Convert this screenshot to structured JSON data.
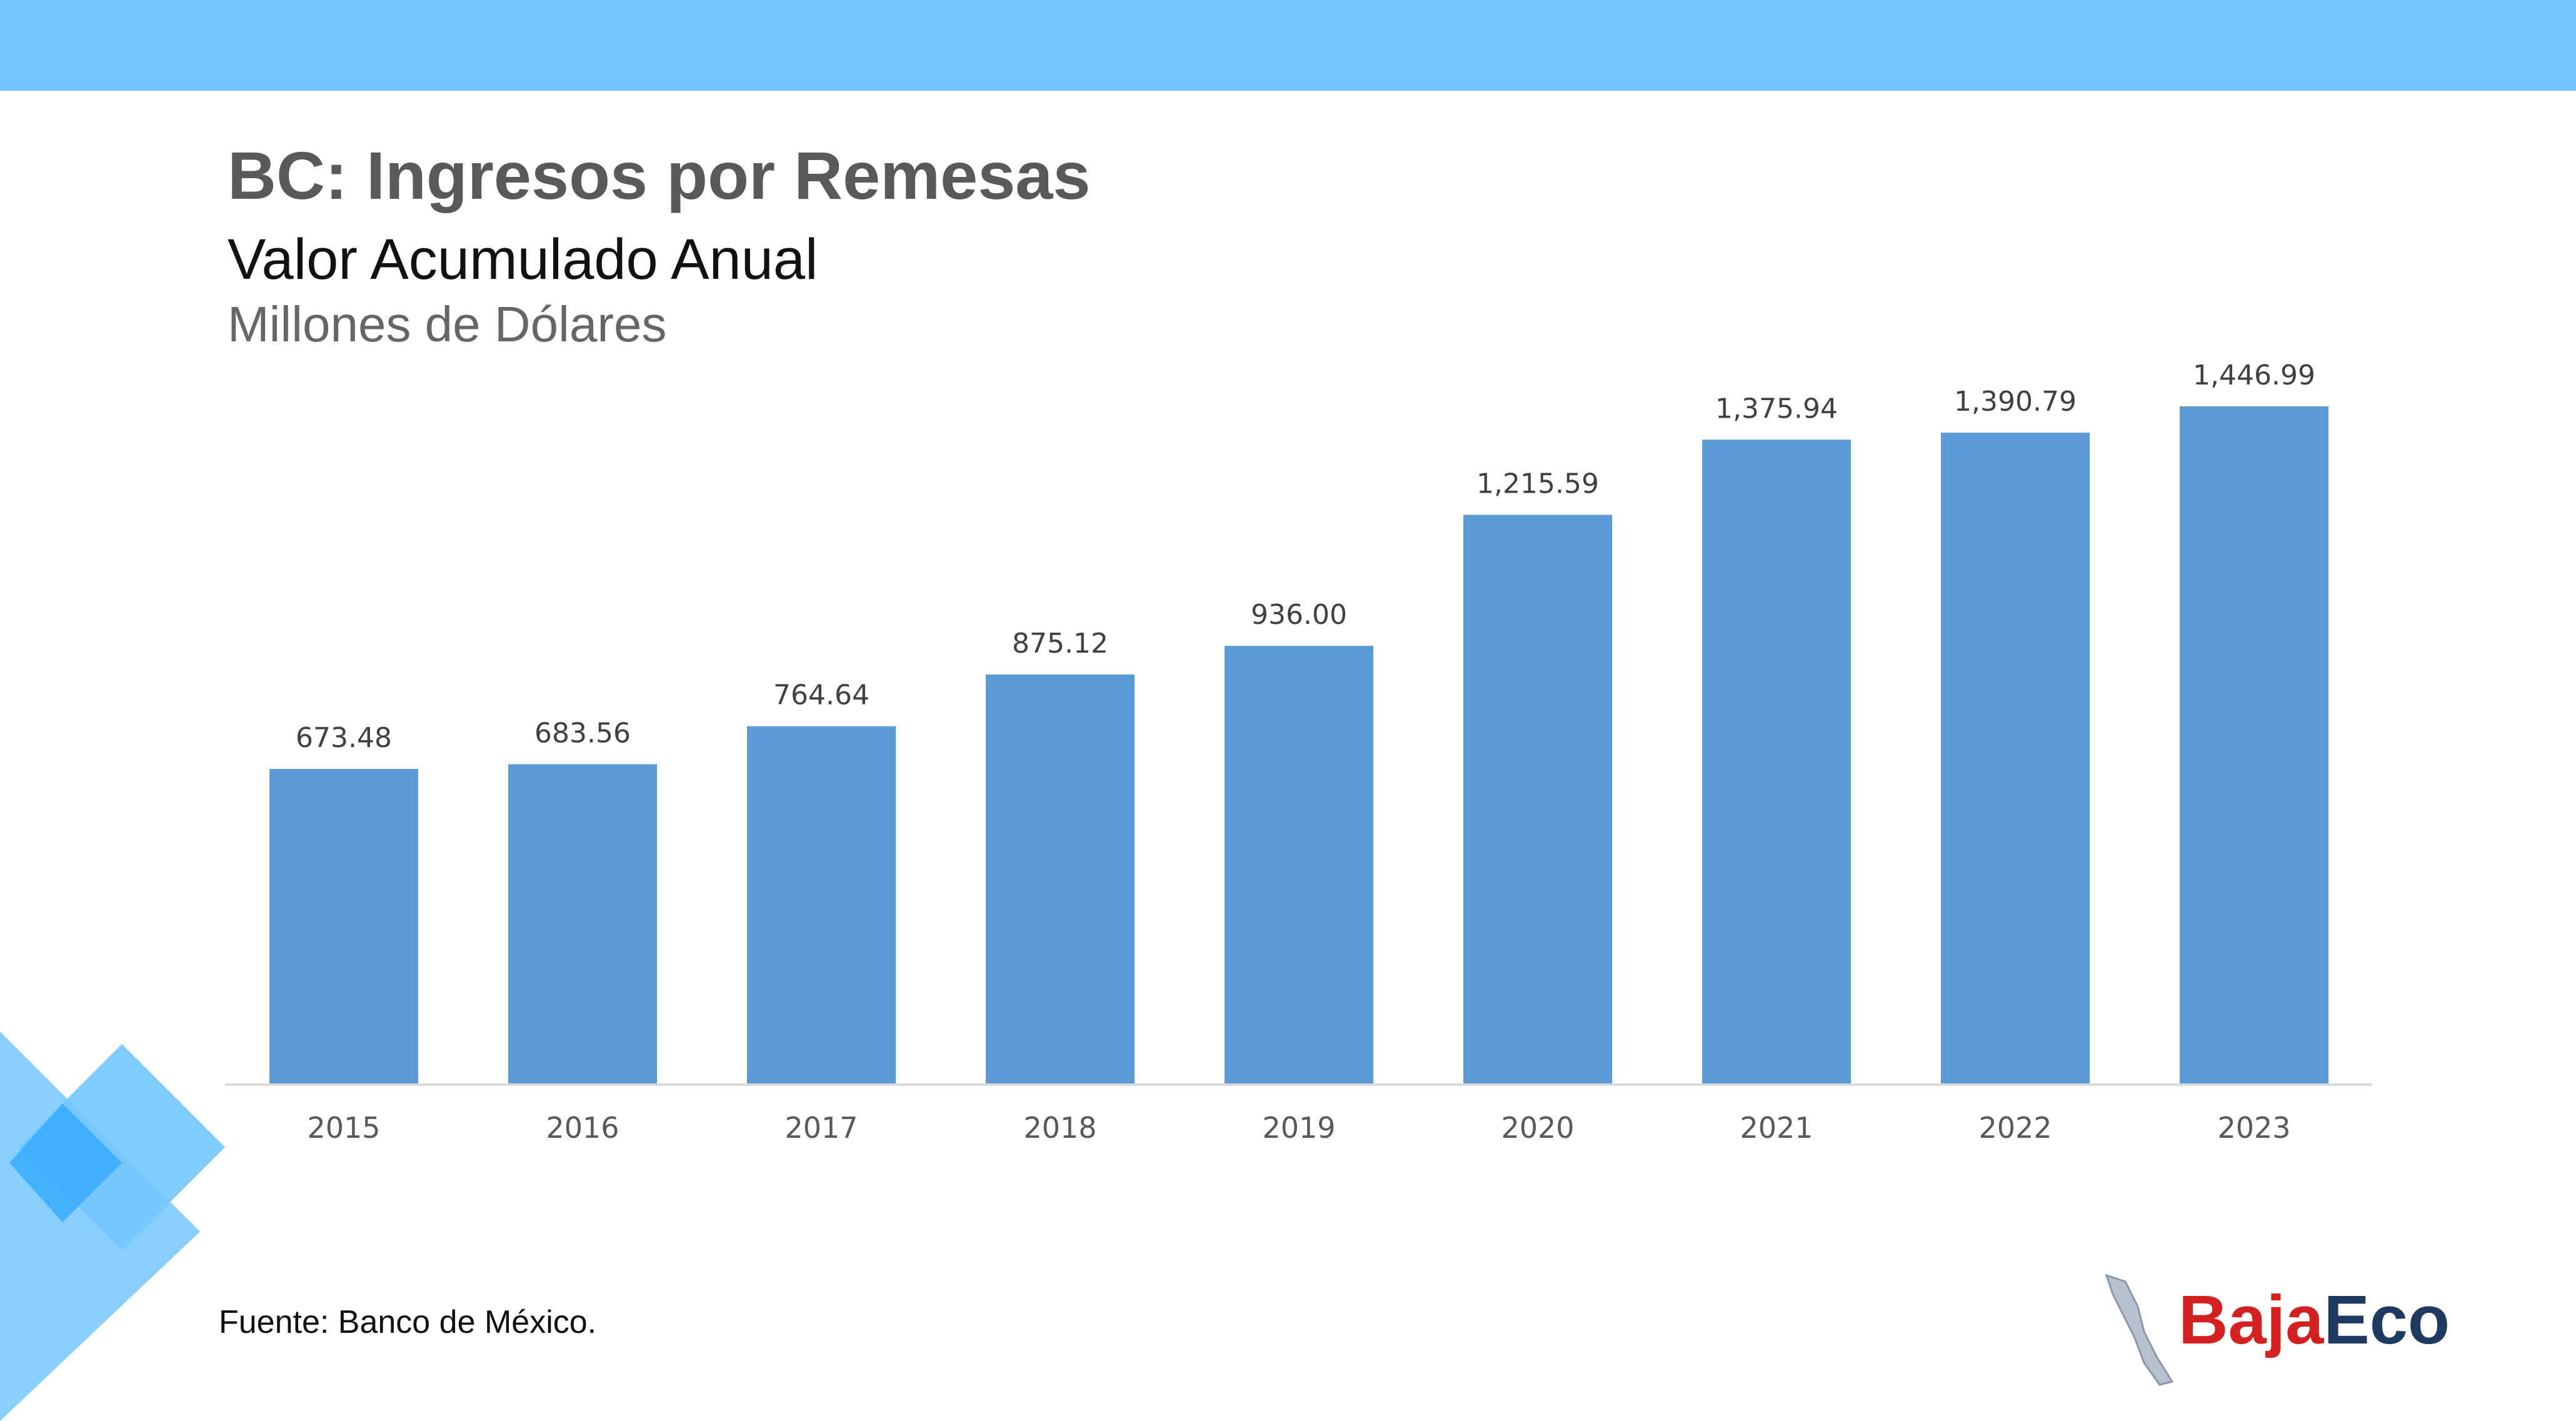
{
  "title": "BC: Ingresos por Remesas",
  "subtitle": "Valor Acumulado Anual",
  "units": "Millones de Dólares",
  "source": "Fuente: Banco de México.",
  "logo": {
    "part1": "Baja",
    "part2": "Eco"
  },
  "colors": {
    "top_bar": "#73C6FF",
    "bar": "#5B9BD5",
    "deco_light": "#73C6FF",
    "deco_dark": "#3AABFF"
  },
  "chart_data": {
    "type": "bar",
    "categories": [
      "2015",
      "2016",
      "2017",
      "2018",
      "2019",
      "2020",
      "2021",
      "2022",
      "2023"
    ],
    "values": [
      673.48,
      683.56,
      764.64,
      875.12,
      936.0,
      1215.59,
      1375.94,
      1390.79,
      1446.99
    ],
    "data_labels": [
      "673.48",
      "683.56",
      "764.64",
      "875.12",
      "936.00",
      "1,215.59",
      "1,375.94",
      "1,390.79",
      "1,446.99"
    ],
    "title": "BC: Ingresos por Remesas",
    "xlabel": "",
    "ylabel": "",
    "ylim": [
      0,
      1500
    ],
    "grid": false,
    "legend": "none"
  }
}
